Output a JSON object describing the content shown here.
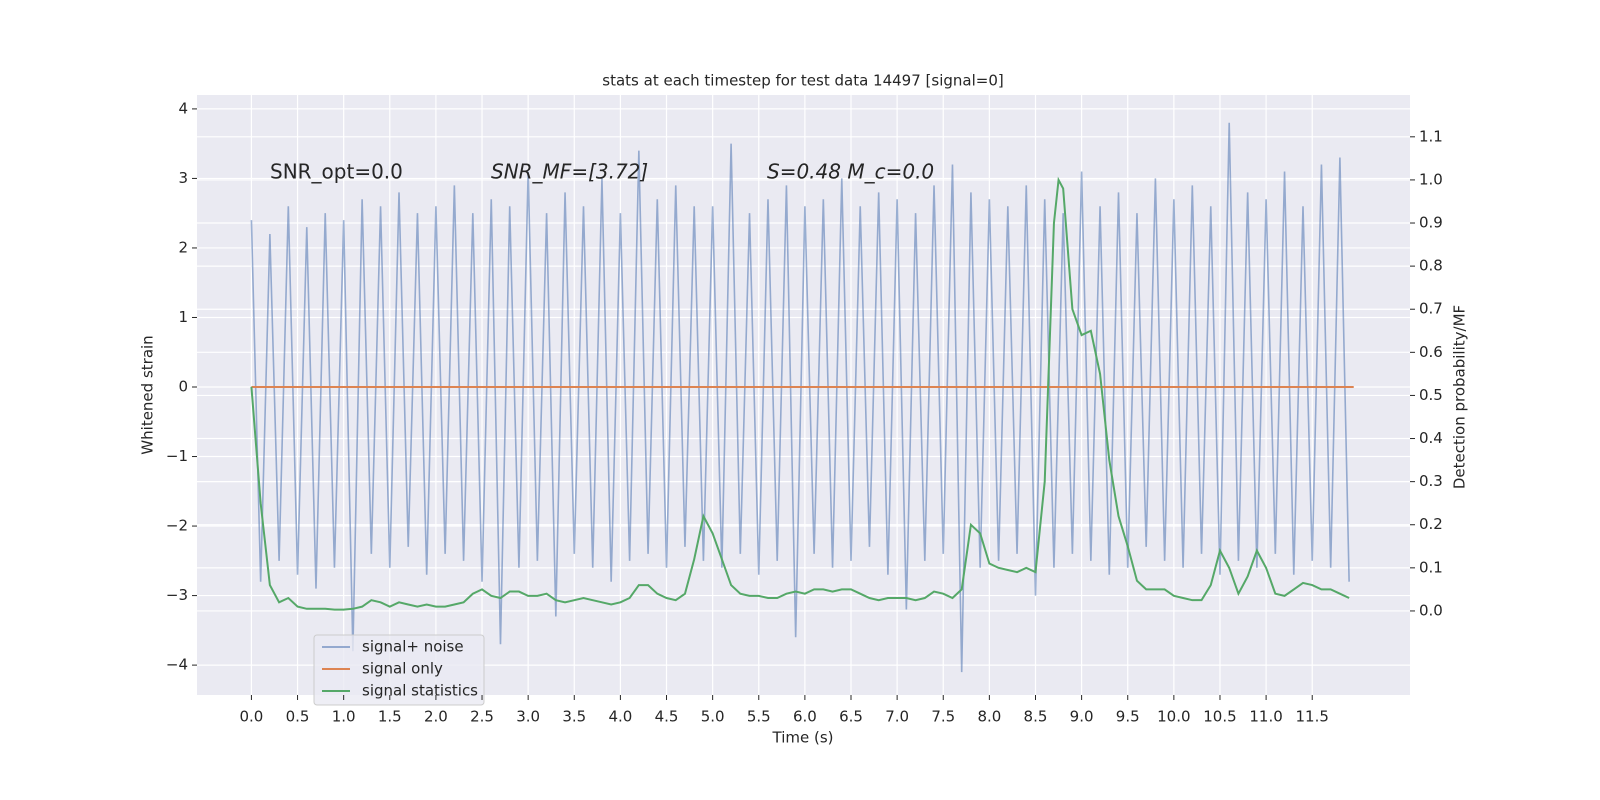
{
  "chart_data": {
    "type": "line",
    "title": "stats at each timestep for test data 14497 [signal=0]",
    "xlabel": "Time (s)",
    "ylabel": "Whitened strain",
    "y2label": "Detection probability/MF",
    "annotations": [
      "SNR_opt=0.0",
      "SNR_MF=[3.72]",
      "S=0.48   M_c=0.0"
    ],
    "xlim": [
      -0.59,
      12.56
    ],
    "ylim": [
      -4.43,
      4.2
    ],
    "y2lim": [
      -0.195,
      1.197
    ],
    "xticks": [
      {
        "value": 0,
        "label": "0.0"
      },
      {
        "value": 0.5,
        "label": "0.5"
      },
      {
        "value": 1,
        "label": "1.0"
      },
      {
        "value": 1.5,
        "label": "1.5"
      },
      {
        "value": 2,
        "label": "2.0"
      },
      {
        "value": 2.5,
        "label": "2.5"
      },
      {
        "value": 3,
        "label": "3.0"
      },
      {
        "value": 3.5,
        "label": "3.5"
      },
      {
        "value": 4,
        "label": "4.0"
      },
      {
        "value": 4.5,
        "label": "4.5"
      },
      {
        "value": 5,
        "label": "5.0"
      },
      {
        "value": 5.5,
        "label": "5.5"
      },
      {
        "value": 6,
        "label": "6.0"
      },
      {
        "value": 6.5,
        "label": "6.5"
      },
      {
        "value": 7,
        "label": "7.0"
      },
      {
        "value": 7.5,
        "label": "7.5"
      },
      {
        "value": 8,
        "label": "8.0"
      },
      {
        "value": 8.5,
        "label": "8.5"
      },
      {
        "value": 9,
        "label": "9.0"
      },
      {
        "value": 9.5,
        "label": "9.5"
      },
      {
        "value": 10,
        "label": "10.0"
      },
      {
        "value": 10.5,
        "label": "10.5"
      },
      {
        "value": 11,
        "label": "11.0"
      },
      {
        "value": 11.5,
        "label": "11.5"
      }
    ],
    "yticks": [
      {
        "value": -4,
        "label": "−4"
      },
      {
        "value": -3,
        "label": "−3"
      },
      {
        "value": -2,
        "label": "−2"
      },
      {
        "value": -1,
        "label": "−1"
      },
      0,
      1,
      2,
      3,
      4
    ],
    "y2ticks": [
      {
        "value": 0,
        "label": "0.0"
      },
      {
        "value": 0.1,
        "label": "0.1"
      },
      {
        "value": 0.2,
        "label": "0.2"
      },
      {
        "value": 0.3,
        "label": "0.3"
      },
      {
        "value": 0.4,
        "label": "0.4"
      },
      {
        "value": 0.5,
        "label": "0.5"
      },
      {
        "value": 0.6,
        "label": "0.6"
      },
      {
        "value": 0.7,
        "label": "0.7"
      },
      {
        "value": 0.8,
        "label": "0.8"
      },
      {
        "value": 0.9,
        "label": "0.9"
      },
      {
        "value": 1,
        "label": "1.0"
      },
      {
        "value": 1.1,
        "label": "1.1"
      }
    ],
    "grid": true,
    "legend": "lower left",
    "series": [
      {
        "name": "signal+ noise",
        "color": "#4c72b0",
        "x": [
          0,
          0.1,
          0.2,
          0.3,
          0.4,
          0.5,
          0.6,
          0.7,
          0.8,
          0.9,
          1,
          1.1,
          1.2,
          1.3,
          1.4,
          1.5,
          1.6,
          1.7,
          1.8,
          1.9,
          2,
          2.1,
          2.2,
          2.3,
          2.4,
          2.5,
          2.6,
          2.7,
          2.8,
          2.9,
          3,
          3.1,
          3.2,
          3.3,
          3.4,
          3.5,
          3.6,
          3.7,
          3.8,
          3.9,
          4,
          4.1,
          4.2,
          4.3,
          4.4,
          4.5,
          4.6,
          4.7,
          4.8,
          4.9,
          5,
          5.1,
          5.2,
          5.3,
          5.4,
          5.5,
          5.6,
          5.7,
          5.8,
          5.9,
          6,
          6.1,
          6.2,
          6.3,
          6.4,
          6.5,
          6.6,
          6.7,
          6.8,
          6.9,
          7,
          7.1,
          7.2,
          7.3,
          7.4,
          7.5,
          7.6,
          7.7,
          7.8,
          7.9,
          8,
          8.1,
          8.2,
          8.3,
          8.4,
          8.5,
          8.6,
          8.7,
          8.8,
          8.9,
          9,
          9.1,
          9.2,
          9.3,
          9.4,
          9.5,
          9.6,
          9.7,
          9.8,
          9.9,
          10,
          10.1,
          10.2,
          10.3,
          10.4,
          10.5,
          10.6,
          10.7,
          10.8,
          10.9,
          11,
          11.1,
          11.2,
          11.3,
          11.4,
          11.5,
          11.6,
          11.7,
          11.8,
          11.9
        ],
        "values": [
          2.4,
          -2.8,
          2.2,
          -2.5,
          2.6,
          -2.7,
          2.3,
          -2.9,
          2.5,
          -2.6,
          2.4,
          -3.8,
          2.7,
          -2.4,
          2.6,
          -2.6,
          2.8,
          -2.3,
          2.5,
          -2.7,
          2.6,
          -2.4,
          2.9,
          -2.5,
          2.5,
          -2.8,
          2.7,
          -3.7,
          2.6,
          -2.6,
          3.1,
          -2.5,
          2.5,
          -3.3,
          2.8,
          -2.4,
          2.6,
          -2.6,
          3.0,
          -2.8,
          2.5,
          -2.5,
          3.4,
          -2.4,
          2.7,
          -2.6,
          2.9,
          -2.3,
          2.6,
          -2.5,
          2.6,
          -2.6,
          3.5,
          -2.4,
          2.5,
          -2.7,
          2.7,
          -2.5,
          2.9,
          -3.6,
          2.6,
          -2.4,
          2.7,
          -2.6,
          3.0,
          -2.5,
          2.6,
          -2.3,
          2.8,
          -2.7,
          2.7,
          -3.2,
          2.5,
          -2.5,
          2.9,
          -2.4,
          3.2,
          -4.1,
          2.8,
          -2.6,
          2.7,
          -2.5,
          2.6,
          -2.4,
          2.9,
          -3.0,
          2.7,
          -2.6,
          2.5,
          -2.4,
          3.1,
          -2.5,
          2.6,
          -2.7,
          2.8,
          -2.6,
          2.5,
          -2.3,
          3.0,
          -2.5,
          2.7,
          -2.6,
          2.9,
          -2.4,
          2.6,
          -2.7,
          3.8,
          -2.5,
          2.8,
          -2.6,
          2.7,
          -2.4,
          3.1,
          -2.7,
          2.6,
          -2.5,
          3.2,
          -2.6,
          3.3,
          -2.8
        ]
      },
      {
        "name": "signal only",
        "color": "#dd8452",
        "x": [
          0,
          11.95
        ],
        "values": [
          0,
          0
        ]
      },
      {
        "name": "signal statistics",
        "color": "#55a868",
        "axis": "y2",
        "x": [
          0,
          0.1,
          0.2,
          0.3,
          0.4,
          0.5,
          0.6,
          0.7,
          0.8,
          0.9,
          1,
          1.1,
          1.2,
          1.3,
          1.4,
          1.5,
          1.6,
          1.7,
          1.8,
          1.9,
          2,
          2.1,
          2.2,
          2.3,
          2.4,
          2.5,
          2.6,
          2.7,
          2.8,
          2.9,
          3,
          3.1,
          3.2,
          3.3,
          3.4,
          3.5,
          3.6,
          3.7,
          3.8,
          3.9,
          4,
          4.1,
          4.2,
          4.3,
          4.4,
          4.5,
          4.6,
          4.7,
          4.8,
          4.9,
          5,
          5.1,
          5.2,
          5.3,
          5.4,
          5.5,
          5.6,
          5.7,
          5.8,
          5.9,
          6,
          6.1,
          6.2,
          6.3,
          6.4,
          6.5,
          6.6,
          6.7,
          6.8,
          6.9,
          7,
          7.1,
          7.2,
          7.3,
          7.4,
          7.5,
          7.6,
          7.7,
          7.8,
          7.9,
          8,
          8.1,
          8.2,
          8.3,
          8.4,
          8.5,
          8.6,
          8.7,
          8.75,
          8.8,
          8.9,
          9,
          9.1,
          9.2,
          9.3,
          9.4,
          9.5,
          9.6,
          9.7,
          9.8,
          9.9,
          10,
          10.1,
          10.2,
          10.3,
          10.4,
          10.5,
          10.6,
          10.7,
          10.8,
          10.9,
          11,
          11.1,
          11.2,
          11.3,
          11.4,
          11.5,
          11.6,
          11.7,
          11.8,
          11.9
        ],
        "values": [
          0.52,
          0.25,
          0.06,
          0.02,
          0.03,
          0.01,
          0.005,
          0.005,
          0.005,
          0.003,
          0.003,
          0.005,
          0.01,
          0.025,
          0.02,
          0.01,
          0.02,
          0.015,
          0.01,
          0.015,
          0.01,
          0.01,
          0.015,
          0.02,
          0.04,
          0.05,
          0.035,
          0.03,
          0.045,
          0.045,
          0.035,
          0.035,
          0.04,
          0.025,
          0.02,
          0.025,
          0.03,
          0.025,
          0.02,
          0.015,
          0.02,
          0.03,
          0.06,
          0.06,
          0.04,
          0.03,
          0.025,
          0.04,
          0.12,
          0.22,
          0.18,
          0.12,
          0.06,
          0.04,
          0.035,
          0.035,
          0.03,
          0.03,
          0.04,
          0.045,
          0.04,
          0.05,
          0.05,
          0.045,
          0.05,
          0.05,
          0.04,
          0.03,
          0.025,
          0.03,
          0.03,
          0.03,
          0.025,
          0.03,
          0.045,
          0.04,
          0.03,
          0.05,
          0.2,
          0.18,
          0.11,
          0.1,
          0.095,
          0.09,
          0.1,
          0.09,
          0.3,
          0.9,
          1.0,
          0.98,
          0.7,
          0.64,
          0.65,
          0.55,
          0.35,
          0.22,
          0.15,
          0.07,
          0.05,
          0.05,
          0.05,
          0.035,
          0.03,
          0.025,
          0.025,
          0.06,
          0.14,
          0.1,
          0.04,
          0.08,
          0.14,
          0.1,
          0.04,
          0.035,
          0.05,
          0.065,
          0.06,
          0.05,
          0.05,
          0.04,
          0.03
        ]
      }
    ]
  }
}
